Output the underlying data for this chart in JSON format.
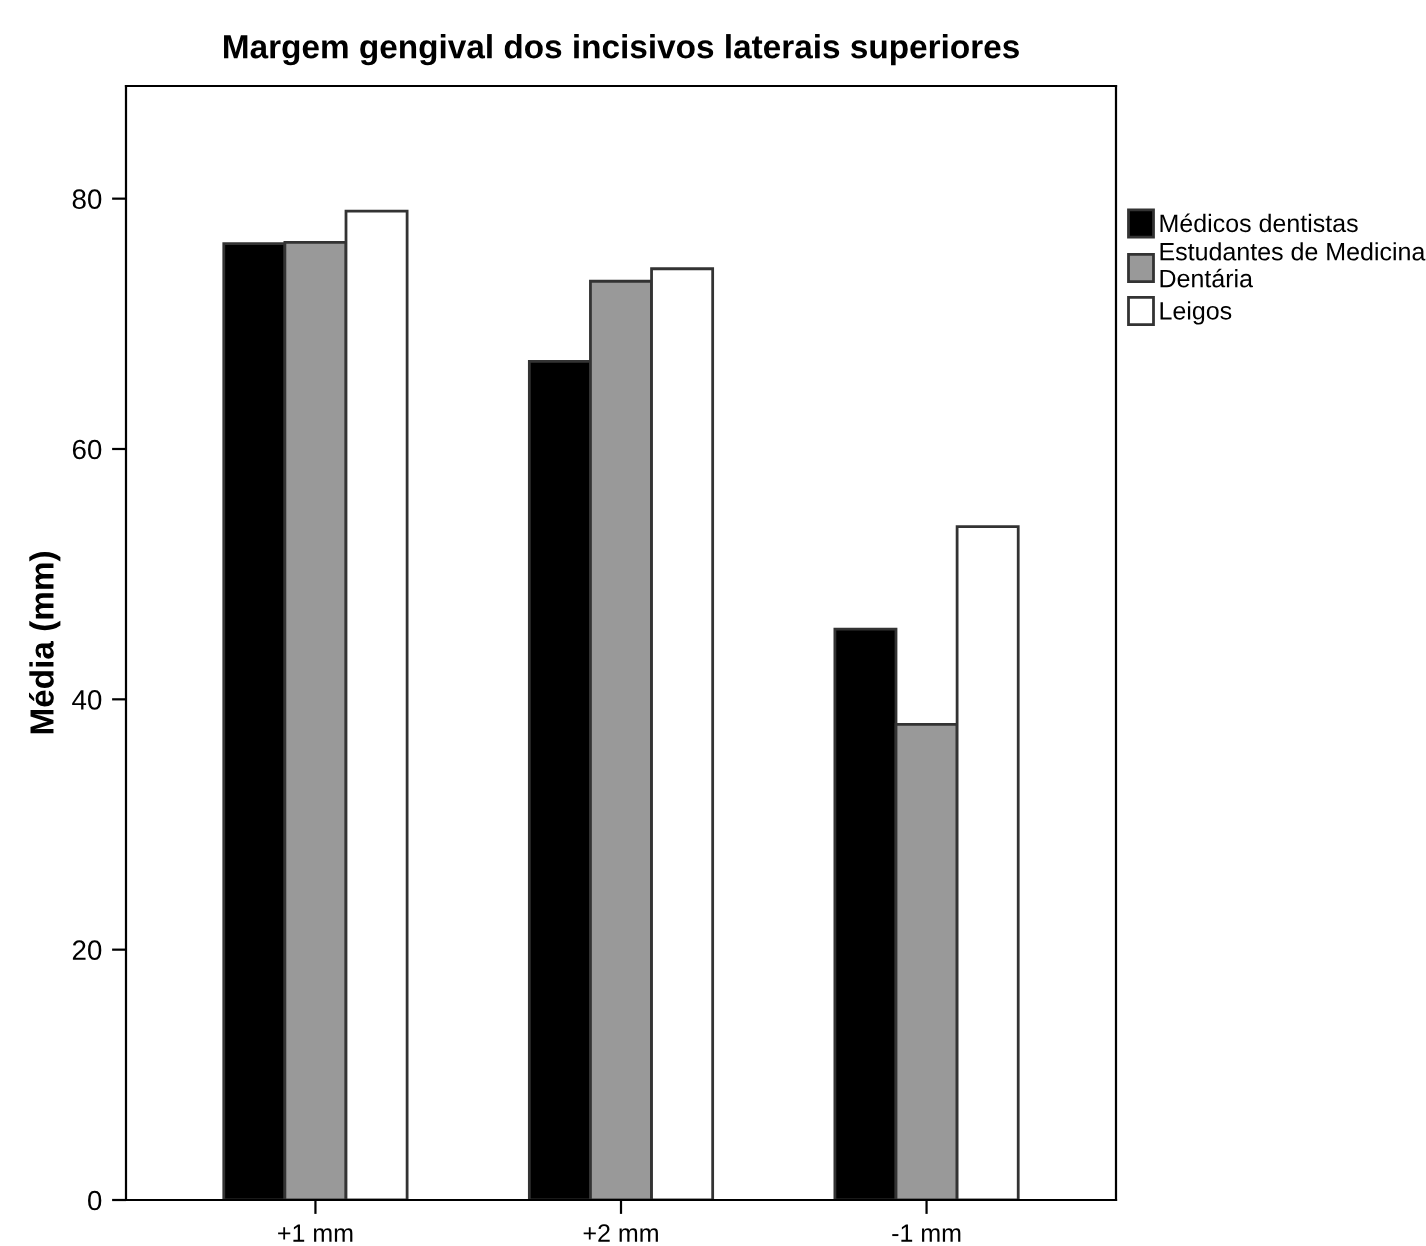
{
  "chart_data": {
    "type": "bar",
    "title": "Margem gengival dos incisivos laterais superiores",
    "ylabel": "Média (mm)",
    "categories": [
      "+1 mm",
      "+2 mm",
      "-1 mm"
    ],
    "series": [
      {
        "name": "Médicos dentistas",
        "color": "#000000",
        "values": [
          76.4,
          67.0,
          45.6
        ]
      },
      {
        "name": "Estudantes de Medicina\nDentária",
        "color": "#999999",
        "values": [
          76.5,
          73.4,
          38.0
        ]
      },
      {
        "name": "Leigos",
        "color": "#ffffff",
        "values": [
          79.0,
          74.4,
          53.8
        ]
      }
    ],
    "ylim": [
      0,
      89
    ],
    "yticks": [
      0,
      20,
      40,
      60,
      80
    ],
    "grid": false,
    "legend": "right"
  }
}
